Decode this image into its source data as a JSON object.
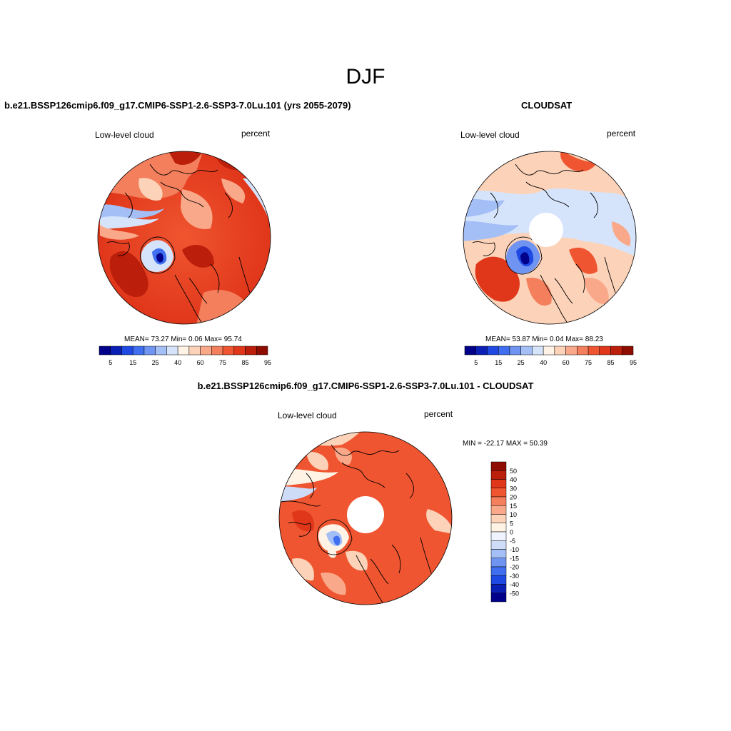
{
  "figure": {
    "title": "DJF"
  },
  "panels": [
    {
      "title": "b.e21.BSSP126cmip6.f09_g17.CMIP6-SSP1-2.6-SSP3-7.0Lu.101 (yrs 2055-2079)",
      "left_label": "Low-level cloud",
      "right_label": "percent",
      "stats": "MEAN=  73.27  Min=    0.06  Max=  95.74"
    },
    {
      "title": "CLOUDSAT",
      "left_label": "Low-level cloud",
      "right_label": "percent",
      "stats": "MEAN=  53.87  Min=    0.04  Max=  88.23"
    },
    {
      "title": "b.e21.BSSP126cmip6.f09_g17.CMIP6-SSP1-2.6-SSP3-7.0Lu.101 - CLOUDSAT",
      "left_label": "Low-level cloud",
      "right_label": "percent",
      "stats": "MIN = -22.17 MAX =  50.39"
    }
  ],
  "colorbar_abs": {
    "colors": [
      "#00008a",
      "#0a1fb4",
      "#1f49e3",
      "#3f6ff0",
      "#6f94f2",
      "#a4bff6",
      "#d6e4fb",
      "#fff3e6",
      "#fcd2b8",
      "#f9a98a",
      "#f47f5c",
      "#ef5530",
      "#e0361a",
      "#bb1e0b",
      "#8f0c00"
    ],
    "tick_labels": [
      "5",
      "15",
      "25",
      "40",
      "60",
      "75",
      "85",
      "95"
    ]
  },
  "colorbar_diff": {
    "colors": [
      "#00008a",
      "#0a1fb4",
      "#1f49e3",
      "#3f6ff0",
      "#6f94f2",
      "#a4bff6",
      "#cfdcf8",
      "#eef3fd",
      "#fff3e6",
      "#fcd2b8",
      "#f9a98a",
      "#f47f5c",
      "#ef5530",
      "#e0361a",
      "#bb1e0b",
      "#8f0c00"
    ],
    "tick_labels": [
      "50",
      "40",
      "30",
      "20",
      "15",
      "10",
      "5",
      "0",
      "-5",
      "-10",
      "-15",
      "-20",
      "-30",
      "-40",
      "-50"
    ]
  }
}
